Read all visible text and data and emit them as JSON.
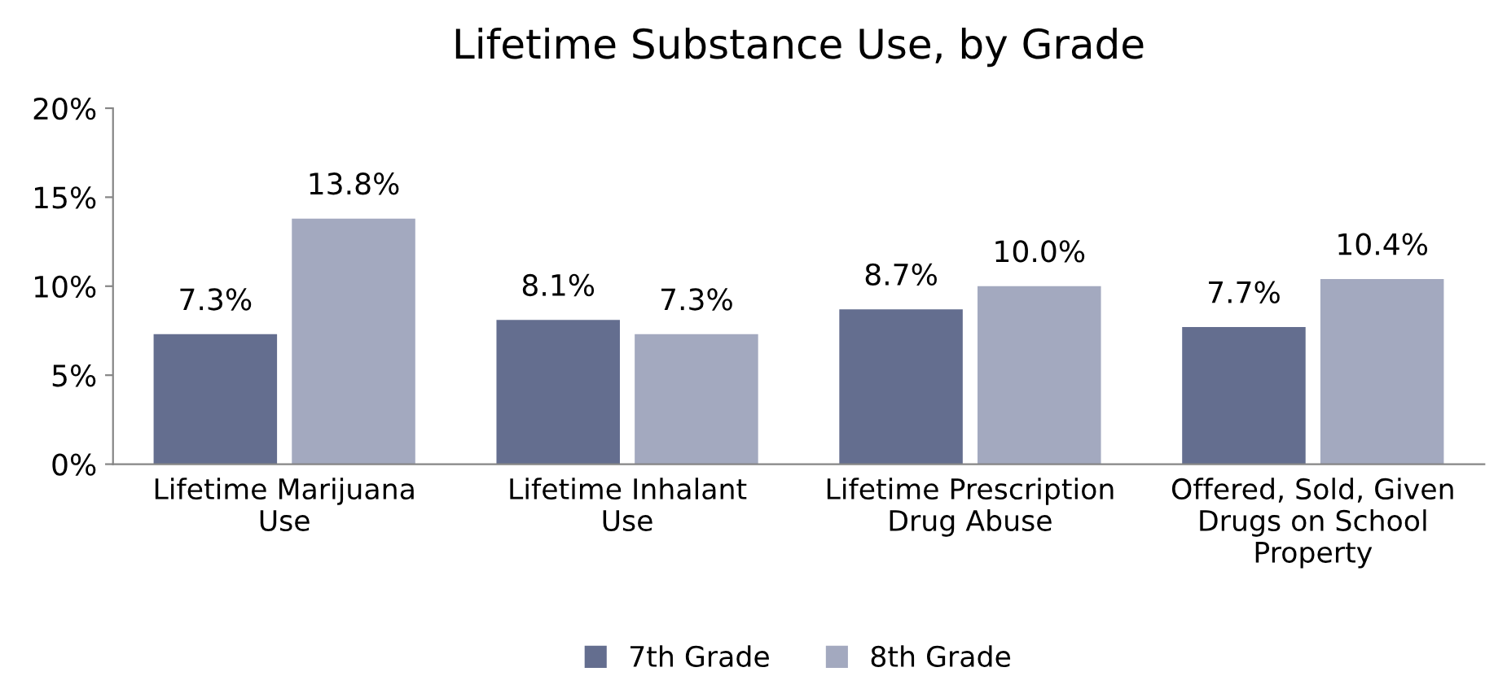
{
  "chart_data": {
    "type": "bar",
    "title": "Lifetime Substance Use, by Grade",
    "categories": [
      "Lifetime Marijuana\nUse",
      "Lifetime Inhalant\nUse",
      "Lifetime Prescription\nDrug Abuse",
      "Offered, Sold, Given\nDrugs on School\nProperty"
    ],
    "series": [
      {
        "name": "7th Grade",
        "color": "#646e8f",
        "values": [
          7.3,
          8.1,
          8.7,
          7.7
        ],
        "value_labels": [
          "7.3%",
          "8.1%",
          "8.7%",
          "7.7%"
        ]
      },
      {
        "name": "8th Grade",
        "color": "#a3a9bf",
        "values": [
          13.8,
          7.3,
          10.0,
          10.4
        ],
        "value_labels": [
          "13.8%",
          "7.3%",
          "10.0%",
          "10.4%"
        ]
      }
    ],
    "ylim": [
      0,
      20
    ],
    "yticks": [
      {
        "value": 0,
        "label": "0%"
      },
      {
        "value": 5,
        "label": "5%"
      },
      {
        "value": 10,
        "label": "10%"
      },
      {
        "value": 15,
        "label": "15%"
      },
      {
        "value": 20,
        "label": "20%"
      }
    ],
    "grid": false,
    "legend": "bottom"
  }
}
